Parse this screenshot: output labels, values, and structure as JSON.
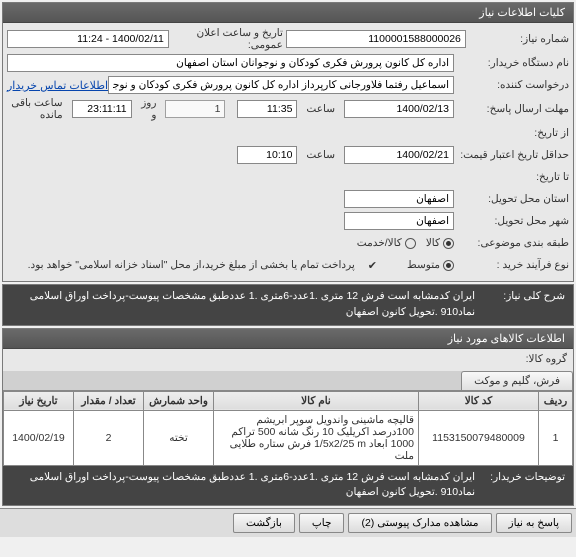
{
  "panel1": {
    "title": "کلیات اطلاعات نیاز",
    "need_no_label": "شماره نیاز:",
    "need_no": "1100001588000026",
    "announce_label": "تاریخ و ساعت اعلان عمومی:",
    "announce_val": "1400/02/11 - 11:24",
    "buyer_label": "نام دستگاه خریدار:",
    "buyer_val": "اداره کل کانون پرورش فکری کودکان و نوجوانان استان اصفهان",
    "requester_label": "درخواست کننده:",
    "requester_val": "اسماعیل رفتما فلاورجانی کارپرداز اداره کل کانون پرورش فکری کودکان و نوجوانان",
    "contact_link": "اطلاعات تماس خریدار",
    "deadline_label": "مهلت ارسال پاسخ:",
    "deadline_date": "1400/02/13",
    "deadline_time": "11:35",
    "time_word": "ساعت",
    "days_word": "روز و",
    "days_val": "1",
    "remain_word": "ساعت باقی مانده",
    "remain_time": "23:11:11",
    "from_label": "از تاریخ:",
    "valid_label": "حداقل تاریخ اعتبار قیمت:",
    "valid_date": "1400/02/21",
    "valid_time": "10:10",
    "to_label": "تا تاریخ:",
    "state_label": "استان محل تحویل:",
    "state_val": "اصفهان",
    "city_label": "شهر محل تحویل:",
    "city_val": "اصفهان",
    "budget_label": "طبقه بندی موضوعی:",
    "goods": "کالا",
    "service": "کالا/خدمت",
    "process_label": "نوع فرآیند خرید :",
    "proc_mid": "متوسط",
    "payment_note": "پرداخت تمام یا بخشی از مبلغ خرید،از محل \"اسناد خزانه اسلامی\" خواهد بود.",
    "check_icon": "✔"
  },
  "panel2": {
    "title": "شرح کلی نیاز:",
    "desc": "ایران کدمشابه است فرش 12 متری .1عدد-6متری .1 عددطبق مشخصات پیوست-پرداخت اوراق اسلامی  نماد910 .تحویل کانون اصفهان"
  },
  "panel3": {
    "title": "اطلاعات کالاهای مورد نیاز",
    "tab": "فرش، گلیم و موکت",
    "group_label": "گروه کالا:",
    "cols": {
      "row": "ردیف",
      "code": "کد کالا",
      "name": "نام کالا",
      "unit": "واحد شمارش",
      "qty": "تعداد / مقدار",
      "date": "تاریخ نیاز"
    },
    "rows": [
      {
        "idx": "1",
        "code": "1153150079480009",
        "name": "قالیچه ماشینی واندویل سوپر ابریشم 100درصد اکریلیک 10 رنگ شانه 500 تراکم 1000 ابعاد 1/5x2/25 m فرش ستاره طلایی ملت",
        "unit": "تخته",
        "qty": "2",
        "date": "1400/02/19"
      }
    ],
    "buyer_notes_label": "توضیحات خریدار:",
    "buyer_notes": "ایران کدمشابه است فرش 12 متری .1عدد-6متری .1 عددطبق مشخصات پیوست-پرداخت اوراق اسلامی  نماد910 .تحویل کانون اصفهان"
  },
  "footer": {
    "reply": "پاسخ به نیاز",
    "attach": "مشاهده مدارک پیوستی (2)",
    "print": "چاپ",
    "back": "بازگشت"
  },
  "colors": {
    "header_bg": "#5a5a5a",
    "link": "#0645ad",
    "yellow": "#ffffcc"
  }
}
